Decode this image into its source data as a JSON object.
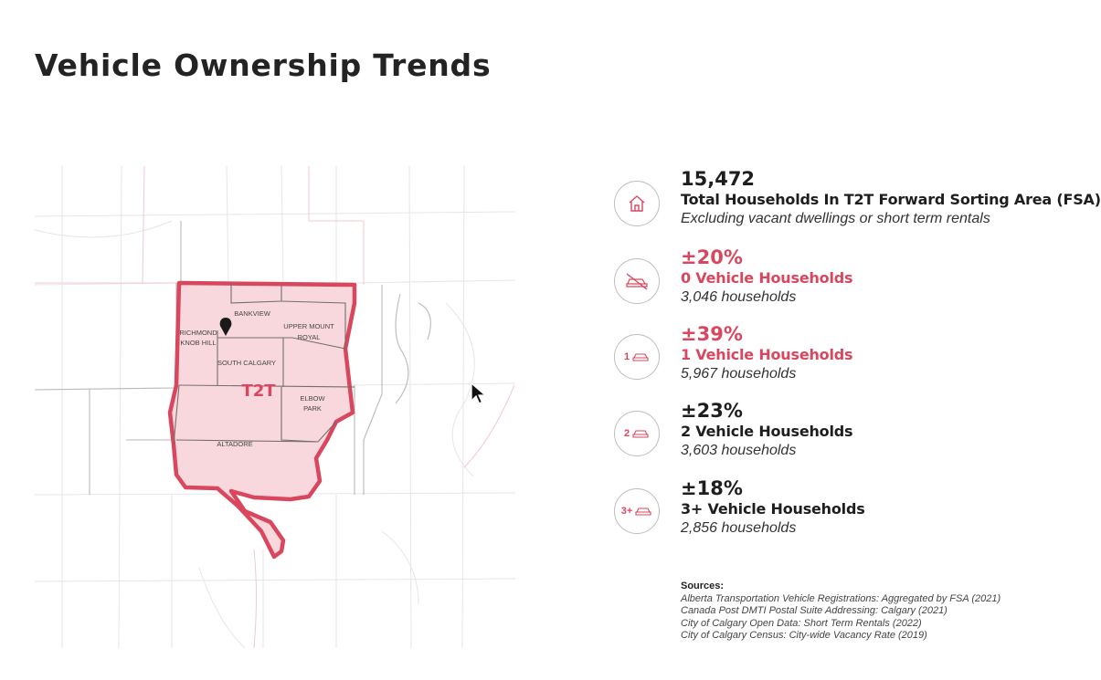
{
  "title": "Vehicle Ownership Trends",
  "map": {
    "labels": {
      "bankview": "BANKVIEW",
      "richmond": "RICHMOND",
      "knob_hill": "KNOB HILL",
      "upper_mount": "UPPER MOUNT",
      "royal": "ROYAL",
      "south_calgary": "SOUTH CALGARY",
      "t2t": "T2T",
      "elbow": "ELBOW",
      "park": "PARK",
      "altadore": "ALTADORE"
    },
    "pin_icon": "location-pin-icon"
  },
  "stats": [
    {
      "value": "15,472",
      "label": "Total Households In T2T Forward Sorting Area (FSA)",
      "sub": "Excluding vacant dwellings or short term rentals",
      "icon": "house-icon"
    },
    {
      "value": "±20%",
      "label": "0 Vehicle Households",
      "sub": "3,046 households",
      "icon": "no-car-icon"
    },
    {
      "value": "±39%",
      "label": "1 Vehicle Households",
      "sub": "5,967 households",
      "icon": "one-car-icon",
      "badge": "1"
    },
    {
      "value": "±23%",
      "label": "2 Vehicle Households",
      "sub": "3,603 households",
      "icon": "two-car-icon",
      "badge": "2"
    },
    {
      "value": "±18%",
      "label": "3+ Vehicle Households",
      "sub": "2,856 households",
      "icon": "three-plus-car-icon",
      "badge": "3+"
    }
  ],
  "sources": {
    "heading": "Sources:",
    "lines": [
      "Alberta Transportation Vehicle Registrations: Aggregated by FSA (2021)",
      "Canada Post DMTI Postal Suite Addressing: Calgary (2021)",
      "City of Calgary Open Data: Short Term Rentals (2022)",
      "City of Calgary Census: City-wide Vacancy Rate (2019)"
    ]
  },
  "colors": {
    "accent": "#d9475e",
    "fill": "#f9d8dd",
    "text": "#1e1e1e"
  }
}
